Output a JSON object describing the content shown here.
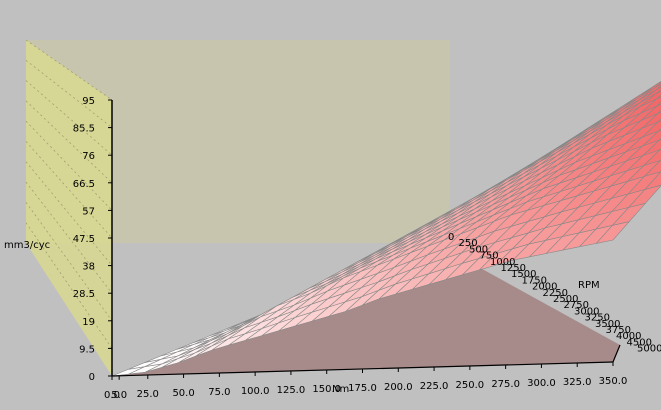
{
  "chart_data": {
    "type": "surface3d",
    "z_axis": {
      "label": "mm3/cyc",
      "ticks": [
        "0",
        "9.5",
        "19",
        "28.5",
        "38",
        "47.5",
        "57",
        "66.5",
        "76",
        "85.5",
        "95"
      ],
      "range": [
        0,
        95
      ]
    },
    "x_axis": {
      "label": "Nm",
      "ticks": [
        "0.0",
        "5.0",
        "25.0",
        "50.0",
        "75.0",
        "100.0",
        "125.0",
        "150.0",
        "175.0",
        "200.0",
        "225.0",
        "250.0",
        "275.0",
        "300.0",
        "325.0",
        "350.0"
      ],
      "range": [
        0,
        350
      ]
    },
    "y_axis": {
      "label": "RPM",
      "ticks": [
        "0",
        "250",
        "500",
        "750",
        "1000",
        "1250",
        "1500",
        "1750",
        "2000",
        "2250",
        "2500",
        "2750",
        "3000",
        "3250",
        "3500",
        "3750",
        "4000",
        "4500",
        "5000"
      ],
      "range": [
        0,
        5000
      ]
    },
    "z_grid_rows": [
      [
        0,
        1,
        4,
        8,
        11,
        14,
        17,
        20,
        24,
        27,
        30,
        33,
        36,
        38,
        40,
        42
      ],
      [
        0,
        3,
        8,
        14,
        18,
        23,
        27,
        31,
        35,
        39,
        43,
        46,
        49,
        52,
        55,
        58
      ],
      [
        0,
        4,
        10,
        17,
        22,
        27,
        32,
        37,
        42,
        47,
        52,
        56,
        60,
        64,
        68,
        71
      ],
      [
        0,
        5,
        12,
        20,
        26,
        32,
        38,
        44,
        50,
        56,
        62,
        67,
        72,
        76,
        80,
        84
      ],
      [
        0,
        6,
        13,
        22,
        29,
        36,
        43,
        50,
        57,
        64,
        71,
        77,
        82,
        86,
        90,
        93
      ],
      [
        0,
        6,
        14,
        23,
        30,
        38,
        46,
        54,
        62,
        70,
        78,
        84,
        88,
        91,
        93,
        95
      ]
    ],
    "highlight_point": {
      "color": "#22dd22"
    },
    "colors": {
      "background": "#c0c0c0",
      "floor": "#a78b8b",
      "back_wall": "#c9c7a8",
      "left_wall": "#d8d890",
      "surface_low": "#ffffff",
      "surface_high": "#ee2a2a",
      "grid_line": "#888888"
    }
  }
}
